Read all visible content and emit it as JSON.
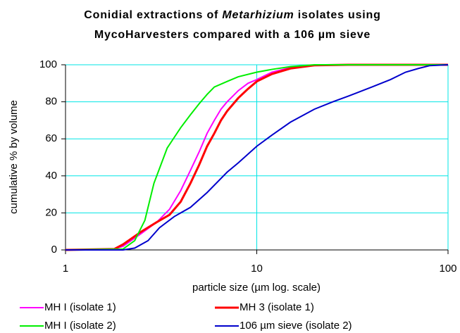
{
  "chart_data": {
    "type": "line",
    "title": [
      [
        "Conidial extractions of ",
        "Metarhizium",
        " isolates using"
      ],
      [
        "MycoHarvesters compared with a 106 µm sieve"
      ]
    ],
    "xlabel": "particle size (µm log. scale)",
    "ylabel": "cumulative % by volume",
    "xscale": "log",
    "xlim": [
      1,
      100
    ],
    "xticks": [
      1,
      10,
      100
    ],
    "ylim": [
      0,
      100
    ],
    "yticks": [
      0,
      20,
      40,
      60,
      80,
      100
    ],
    "grid": true,
    "legend": "bottom",
    "series": [
      {
        "name": "MH I (isolate 1)",
        "color": "#ff00ff",
        "x": [
          1,
          1.8,
          2,
          2.5,
          3,
          3.5,
          4,
          4.5,
          5,
          5.5,
          6,
          6.5,
          7,
          8,
          9,
          10,
          12,
          15,
          20,
          30,
          100
        ],
        "values": [
          0,
          0.5,
          2,
          9,
          15,
          22,
          32,
          43,
          53,
          63,
          70,
          76,
          80,
          86,
          90,
          92,
          96,
          98.5,
          99.8,
          100,
          100
        ]
      },
      {
        "name": "MH 3 (isolate 1)",
        "color": "#ff0000",
        "x": [
          1,
          1.8,
          2,
          2.5,
          3,
          3.5,
          4,
          4.5,
          5,
          5.5,
          6,
          6.5,
          7,
          8,
          9,
          10,
          12,
          15,
          20,
          30,
          100
        ],
        "values": [
          0,
          0.5,
          3,
          10,
          15,
          19,
          26,
          36,
          46,
          56,
          63,
          70,
          75,
          82,
          87,
          91,
          95,
          98,
          99.7,
          100,
          100
        ]
      },
      {
        "name": "MH I (isolate 2)",
        "color": "#00ee00",
        "x": [
          1,
          2,
          2.3,
          2.6,
          2.9,
          3.4,
          4,
          4.5,
          5,
          5.5,
          6,
          7,
          8,
          10,
          12,
          15,
          20,
          100
        ],
        "values": [
          0,
          0.5,
          5,
          16,
          36,
          55,
          66,
          73,
          79,
          84,
          88,
          91,
          93.5,
          96,
          97.5,
          99,
          100,
          100
        ]
      },
      {
        "name": "106 µm sieve (isolate 2)",
        "color": "#0000cc",
        "x": [
          1,
          2,
          2.3,
          2.7,
          3.1,
          3.7,
          4.5,
          5.5,
          7,
          8,
          10,
          12,
          15,
          20,
          25,
          30,
          40,
          50,
          60,
          70,
          80,
          100
        ],
        "values": [
          0,
          0,
          1,
          5,
          12,
          18,
          23,
          31,
          42,
          47,
          56,
          62,
          69,
          76,
          80,
          83,
          88,
          92,
          96,
          98,
          99.5,
          100
        ]
      }
    ]
  }
}
